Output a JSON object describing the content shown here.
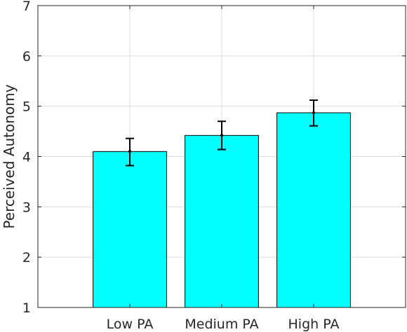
{
  "chart_data": {
    "type": "bar",
    "categories": [
      "Low PA",
      "Medium PA",
      "High PA"
    ],
    "series": [
      {
        "values": [
          4.1,
          4.42,
          4.87
        ],
        "error_low": [
          3.82,
          4.14,
          4.61
        ],
        "error_high": [
          4.36,
          4.7,
          5.12
        ]
      }
    ],
    "title": "",
    "xlabel": "",
    "ylabel": "Perceived Autonomy",
    "ylim": [
      1,
      7
    ],
    "yticks": [
      "1",
      "2",
      "3",
      "4",
      "5",
      "6",
      "7"
    ],
    "grid": true,
    "legend": "none",
    "colors": {
      "bar": "#00ffff",
      "bar_edge": "#000000",
      "error": "#000000",
      "grid": "#dcdcdc",
      "axis": "#262626"
    }
  }
}
